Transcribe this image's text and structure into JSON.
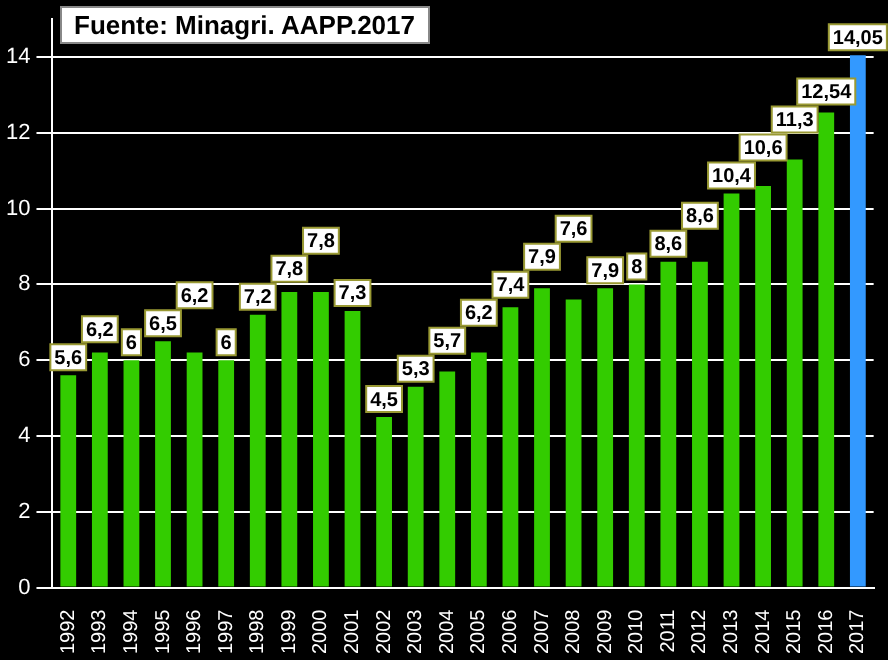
{
  "chart_data": {
    "type": "bar",
    "title": "Fuente: Minagri. AAPP.2017",
    "categories": [
      "1992",
      "1993",
      "1994",
      "1995",
      "1996",
      "1997",
      "1998",
      "1999",
      "2000",
      "2001",
      "2002",
      "2003",
      "2004",
      "2005",
      "2006",
      "2007",
      "2008",
      "2009",
      "2010",
      "2011",
      "2012",
      "2013",
      "2014",
      "2015",
      "2016",
      "2017"
    ],
    "values": [
      5.6,
      6.2,
      6,
      6.5,
      6.2,
      6,
      7.2,
      7.8,
      7.8,
      7.3,
      4.5,
      5.3,
      5.7,
      6.2,
      7.4,
      7.9,
      7.6,
      7.9,
      8,
      8.6,
      8.6,
      10.4,
      10.6,
      11.3,
      12.54,
      14.05
    ],
    "value_labels": [
      "5,6",
      "6,2",
      "6",
      "6,5",
      "6,2",
      "6",
      "7,2",
      "7,8",
      "7,8",
      "7,3",
      "4,5",
      "5,3",
      "5,7",
      "6,2",
      "7,4",
      "7,9",
      "7,6",
      "7,9",
      "8",
      "8,6",
      "8,6",
      "10,4",
      "10,6",
      "11,3",
      "12,54",
      "14,05"
    ],
    "colors": [
      "#33cc00",
      "#33cc00",
      "#33cc00",
      "#33cc00",
      "#33cc00",
      "#33cc00",
      "#33cc00",
      "#33cc00",
      "#33cc00",
      "#33cc00",
      "#33cc00",
      "#33cc00",
      "#33cc00",
      "#33cc00",
      "#33cc00",
      "#33cc00",
      "#33cc00",
      "#33cc00",
      "#33cc00",
      "#33cc00",
      "#33cc00",
      "#33cc00",
      "#33cc00",
      "#33cc00",
      "#33cc00",
      "#3399ff"
    ],
    "ylim": [
      0,
      15
    ],
    "yticks": [
      0,
      2,
      4,
      6,
      8,
      10,
      12,
      14
    ],
    "grid": "y",
    "legend": false
  }
}
